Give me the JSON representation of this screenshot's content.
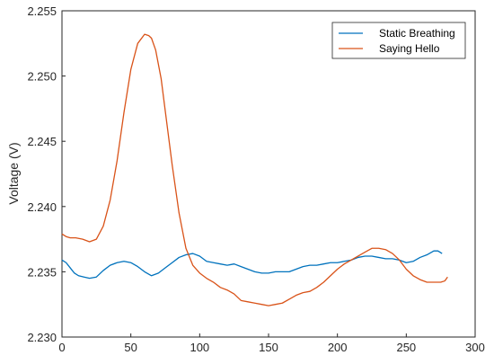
{
  "chart_data": {
    "type": "line",
    "title": "",
    "xlabel": "",
    "ylabel": "Voltage (V)",
    "xlim": [
      0,
      300
    ],
    "ylim": [
      2.23,
      2.255
    ],
    "xticks": [
      "0",
      "50",
      "100",
      "150",
      "200",
      "250",
      "300"
    ],
    "yticks": [
      "2.230",
      "2.235",
      "2.240",
      "2.245",
      "2.250",
      "2.255"
    ],
    "legend": "top-right",
    "grid": false,
    "series": [
      {
        "name": "Static Breathing",
        "color": "#0072BD",
        "x": [
          0,
          3,
          6,
          9,
          12,
          16,
          20,
          25,
          30,
          35,
          40,
          45,
          50,
          55,
          60,
          65,
          70,
          75,
          80,
          85,
          90,
          95,
          100,
          105,
          110,
          115,
          120,
          125,
          130,
          135,
          140,
          145,
          150,
          155,
          160,
          165,
          170,
          175,
          180,
          185,
          190,
          195,
          200,
          205,
          210,
          215,
          220,
          225,
          230,
          235,
          240,
          245,
          250,
          255,
          260,
          265,
          270,
          273,
          276
        ],
        "y": [
          2.2359,
          2.2357,
          2.2353,
          2.2349,
          2.2347,
          2.2346,
          2.2345,
          2.2346,
          2.2351,
          2.2355,
          2.2357,
          2.2358,
          2.2357,
          2.2354,
          2.235,
          2.2347,
          2.2349,
          2.2353,
          2.2357,
          2.2361,
          2.2363,
          2.2364,
          2.2362,
          2.2358,
          2.2357,
          2.2356,
          2.2355,
          2.2356,
          2.2354,
          2.2352,
          2.235,
          2.2349,
          2.2349,
          2.235,
          2.235,
          2.235,
          2.2352,
          2.2354,
          2.2355,
          2.2355,
          2.2356,
          2.2357,
          2.2357,
          2.2358,
          2.2359,
          2.2361,
          2.2362,
          2.2362,
          2.2361,
          2.236,
          2.236,
          2.2359,
          2.2357,
          2.2358,
          2.2361,
          2.2363,
          2.2366,
          2.2366,
          2.2364
        ]
      },
      {
        "name": "Saying Hello",
        "color": "#D95319",
        "x": [
          0,
          3,
          6,
          10,
          15,
          20,
          25,
          30,
          35,
          40,
          45,
          50,
          55,
          60,
          63,
          65,
          68,
          72,
          76,
          80,
          85,
          90,
          95,
          100,
          105,
          110,
          115,
          120,
          125,
          130,
          135,
          140,
          145,
          150,
          155,
          160,
          165,
          170,
          175,
          180,
          185,
          190,
          195,
          200,
          205,
          210,
          215,
          220,
          225,
          230,
          235,
          240,
          245,
          250,
          255,
          260,
          265,
          270,
          275,
          278,
          280
        ],
        "y": [
          2.2379,
          2.2377,
          2.2376,
          2.2376,
          2.2375,
          2.2373,
          2.2375,
          2.2385,
          2.2405,
          2.2435,
          2.2472,
          2.2505,
          2.2525,
          2.2532,
          2.2531,
          2.2529,
          2.252,
          2.2498,
          2.2465,
          2.2432,
          2.2395,
          2.2368,
          2.2355,
          2.2349,
          2.2345,
          2.2342,
          2.2338,
          2.2336,
          2.2333,
          2.2328,
          2.2327,
          2.2326,
          2.2325,
          2.2324,
          2.2325,
          2.2326,
          2.2329,
          2.2332,
          2.2334,
          2.2335,
          2.2338,
          2.2342,
          2.2347,
          2.2352,
          2.2356,
          2.2359,
          2.2362,
          2.2365,
          2.2368,
          2.2368,
          2.2367,
          2.2364,
          2.2359,
          2.2352,
          2.2347,
          2.2344,
          2.2342,
          2.2342,
          2.2342,
          2.2343,
          2.2346
        ]
      }
    ]
  }
}
